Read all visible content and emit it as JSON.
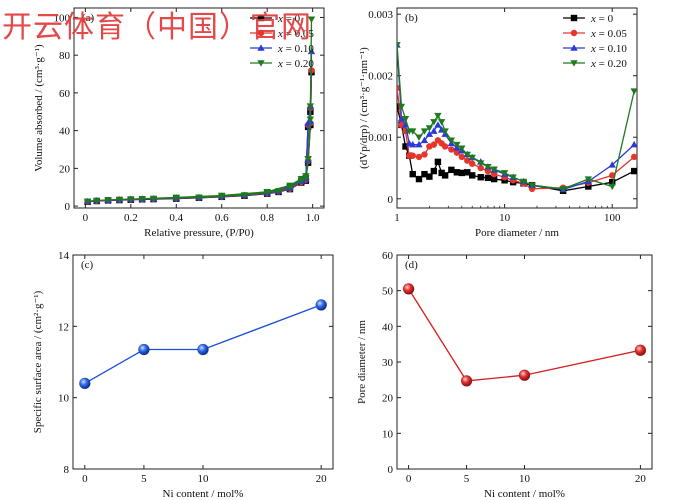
{
  "watermark": "开云体育（中国）官网",
  "chart_data": [
    {
      "id": "a",
      "type": "line",
      "panel_label": "(a)",
      "xlabel": "Relative pressure, (P/P0)",
      "ylabel": "Volume absorbed / (cm³·g⁻¹)",
      "xlim": [
        -0.05,
        1.05
      ],
      "ylim": [
        -1,
        105
      ],
      "xticks": [
        0,
        0.2,
        0.4,
        0.6,
        0.8,
        1.0
      ],
      "xtick_labels": [
        "0",
        "0.2",
        "0.4",
        "0.6",
        "0.8",
        "1.0"
      ],
      "yticks": [
        0,
        20,
        40,
        60,
        80,
        100
      ],
      "ytick_labels": [
        "0",
        "20",
        "40",
        "60",
        "80",
        "100"
      ],
      "legend_position": "top-right",
      "series": [
        {
          "name": "x = 0",
          "legend_x": "x",
          "legend_rest": " = 0",
          "color": "#000000",
          "marker": "square",
          "x": [
            0.01,
            0.05,
            0.1,
            0.15,
            0.2,
            0.25,
            0.3,
            0.4,
            0.5,
            0.6,
            0.7,
            0.8,
            0.85,
            0.9,
            0.95,
            0.97,
            0.98,
            0.99,
            0.995,
            0.99,
            0.98,
            0.97,
            0.95,
            0.9,
            0.8,
            0.6,
            0.4,
            0.2
          ],
          "y": [
            2.3,
            2.7,
            3.0,
            3.2,
            3.4,
            3.6,
            3.7,
            4.0,
            4.4,
            4.9,
            5.5,
            6.6,
            7.5,
            9,
            12.5,
            13.5,
            42,
            50,
            71,
            43,
            23,
            14.5,
            13,
            10,
            7,
            5,
            4,
            3.4
          ]
        },
        {
          "name": "x = 0.05",
          "legend_x": "x",
          "legend_rest": " = 0.05",
          "color": "#e8352c",
          "marker": "circle",
          "x": [
            0.01,
            0.05,
            0.1,
            0.15,
            0.2,
            0.25,
            0.3,
            0.4,
            0.5,
            0.6,
            0.7,
            0.8,
            0.85,
            0.9,
            0.95,
            0.97,
            0.98,
            0.99,
            0.995,
            0.99,
            0.98,
            0.97,
            0.95,
            0.9,
            0.8,
            0.6,
            0.4,
            0.2
          ],
          "y": [
            2.4,
            2.8,
            3.1,
            3.3,
            3.5,
            3.7,
            3.8,
            4.1,
            4.5,
            5.0,
            5.7,
            6.8,
            7.7,
            9.2,
            12.8,
            14,
            43,
            52,
            72,
            44,
            24,
            15,
            13.5,
            10.3,
            7.2,
            5.2,
            4.2,
            3.5
          ]
        },
        {
          "name": "x = 0.10",
          "legend_x": "x",
          "legend_rest": " = 0.10",
          "color": "#2b39d9",
          "marker": "triangle-up",
          "x": [
            0.01,
            0.05,
            0.1,
            0.15,
            0.2,
            0.25,
            0.3,
            0.4,
            0.5,
            0.6,
            0.7,
            0.8,
            0.85,
            0.9,
            0.95,
            0.97,
            0.98,
            0.99,
            0.995,
            0.99,
            0.98,
            0.97,
            0.95,
            0.9,
            0.8,
            0.6,
            0.4,
            0.2
          ],
          "y": [
            2.5,
            2.9,
            3.2,
            3.4,
            3.6,
            3.8,
            3.9,
            4.2,
            4.6,
            5.1,
            5.8,
            7.0,
            7.9,
            9.5,
            13.2,
            14.5,
            44,
            53,
            82,
            45,
            24.5,
            15.5,
            14,
            10.6,
            7.4,
            5.4,
            4.4,
            3.6
          ]
        },
        {
          "name": "x = 0.20",
          "legend_x": "x",
          "legend_rest": " = 0.20",
          "color": "#1f7a1f",
          "marker": "triangle-down",
          "x": [
            0.01,
            0.05,
            0.1,
            0.15,
            0.2,
            0.25,
            0.3,
            0.4,
            0.5,
            0.6,
            0.7,
            0.8,
            0.85,
            0.9,
            0.95,
            0.97,
            0.98,
            0.99,
            0.995,
            0.99,
            0.98,
            0.97,
            0.95,
            0.9,
            0.8,
            0.6,
            0.4,
            0.2
          ],
          "y": [
            2.6,
            3.0,
            3.3,
            3.5,
            3.7,
            3.9,
            4.0,
            4.3,
            4.7,
            5.2,
            5.9,
            7.2,
            8.1,
            9.8,
            13.6,
            15,
            25,
            53,
            99,
            46,
            25,
            16,
            14.5,
            11,
            7.6,
            5.6,
            4.6,
            3.7
          ]
        }
      ]
    },
    {
      "id": "b",
      "type": "line",
      "panel_label": "(b)",
      "xlabel": "Pore diameter / nm",
      "ylabel": "(dVp/drp) / (cm³·g⁻¹·nm⁻¹)",
      "xscale": "log",
      "xlim": [
        1,
        170
      ],
      "ylim": [
        -0.00015,
        0.0031
      ],
      "xticks": [
        1,
        10,
        100
      ],
      "xtick_labels": [
        "1",
        "10",
        "100"
      ],
      "yticks": [
        0,
        0.001,
        0.002,
        0.003
      ],
      "ytick_labels": [
        "0",
        "0.001",
        "0.002",
        "0.003"
      ],
      "legend_position": "top-right",
      "series": [
        {
          "name": "x = 0",
          "legend_x": "x",
          "legend_rest": " = 0",
          "color": "#000000",
          "marker": "square",
          "x": [
            1.0,
            1.1,
            1.2,
            1.3,
            1.4,
            1.6,
            1.8,
            2.0,
            2.2,
            2.4,
            2.6,
            2.8,
            3.2,
            3.6,
            4,
            4.5,
            5,
            6,
            7,
            8,
            10,
            12,
            15,
            18,
            35,
            60,
            100,
            160
          ],
          "y": [
            0.0015,
            0.0012,
            0.00085,
            0.0007,
            0.0004,
            0.00032,
            0.0004,
            0.00036,
            0.00045,
            0.0006,
            0.00042,
            0.00038,
            0.00047,
            0.00043,
            0.00042,
            0.00043,
            0.00038,
            0.00035,
            0.00034,
            0.00032,
            0.0003,
            0.00027,
            0.00025,
            0.00022,
            0.00013,
            0.0002,
            0.00027,
            0.00045
          ]
        },
        {
          "name": "x = 0.05",
          "legend_x": "x",
          "legend_rest": " = 0.05",
          "color": "#e8352c",
          "marker": "circle",
          "x": [
            1.0,
            1.1,
            1.2,
            1.3,
            1.4,
            1.6,
            1.8,
            2.0,
            2.2,
            2.4,
            2.6,
            2.8,
            3.2,
            3.6,
            4,
            4.5,
            5,
            6,
            7,
            8,
            10,
            12,
            15,
            18,
            35,
            60,
            100,
            160
          ],
          "y": [
            0.0018,
            0.0012,
            0.0011,
            0.0007,
            0.0007,
            0.00068,
            0.00072,
            0.00085,
            0.00088,
            0.00095,
            0.0009,
            0.00085,
            0.0008,
            0.00075,
            0.00068,
            0.00062,
            0.00057,
            0.0005,
            0.00045,
            0.0004,
            0.00035,
            0.0003,
            0.00025,
            0.00016,
            0.00018,
            0.00026,
            0.00038,
            0.00068
          ]
        },
        {
          "name": "x = 0.10",
          "legend_x": "x",
          "legend_rest": " = 0.10",
          "color": "#2b39d9",
          "marker": "triangle-up",
          "x": [
            1.0,
            1.1,
            1.2,
            1.3,
            1.4,
            1.6,
            1.8,
            2.0,
            2.2,
            2.4,
            2.6,
            2.8,
            3.2,
            3.6,
            4,
            4.5,
            5,
            6,
            7,
            8,
            10,
            12,
            15,
            18,
            35,
            60,
            100,
            160
          ],
          "y": [
            0.0025,
            0.0013,
            0.0012,
            0.0009,
            0.00088,
            0.00088,
            0.00095,
            0.00105,
            0.0011,
            0.0012,
            0.00112,
            0.00105,
            0.0009,
            0.00083,
            0.00078,
            0.00072,
            0.00067,
            0.0006,
            0.00052,
            0.00047,
            0.0004,
            0.00035,
            0.00028,
            0.00022,
            0.00015,
            0.00028,
            0.00055,
            0.00088
          ]
        },
        {
          "name": "x = 0.20",
          "legend_x": "x",
          "legend_rest": " = 0.20",
          "color": "#1f7a1f",
          "marker": "triangle-down",
          "x": [
            1.0,
            1.1,
            1.2,
            1.3,
            1.4,
            1.6,
            1.8,
            2.0,
            2.2,
            2.4,
            2.6,
            2.8,
            3.2,
            3.6,
            4,
            4.5,
            5,
            6,
            7,
            8,
            10,
            12,
            15,
            18,
            35,
            60,
            100,
            160
          ],
          "y": [
            0.0025,
            0.0015,
            0.0013,
            0.0011,
            0.0011,
            0.001,
            0.0011,
            0.00115,
            0.00125,
            0.00135,
            0.00125,
            0.0011,
            0.00095,
            0.00088,
            0.00082,
            0.00072,
            0.00067,
            0.00058,
            0.00052,
            0.00048,
            0.00042,
            0.00035,
            0.00028,
            0.00022,
            0.00016,
            0.00032,
            0.0002,
            0.00175
          ]
        }
      ]
    },
    {
      "id": "c",
      "type": "line",
      "panel_label": "(c)",
      "xlabel": "Ni content / mol%",
      "ylabel": "Specific surface area / (cm²·g⁻¹)",
      "xlim": [
        -1,
        21
      ],
      "ylim": [
        8,
        14
      ],
      "xticks": [
        0,
        5,
        10,
        20
      ],
      "xtick_labels": [
        "0",
        "5",
        "10",
        "20"
      ],
      "yticks": [
        8,
        10,
        12,
        14
      ],
      "ytick_labels": [
        "8",
        "10",
        "12",
        "14"
      ],
      "series": [
        {
          "name": "Specific surface area",
          "color": "#1a4fd6",
          "marker": "sphere",
          "x": [
            0,
            5,
            10,
            20
          ],
          "y": [
            10.4,
            11.35,
            11.35,
            12.6
          ]
        }
      ]
    },
    {
      "id": "d",
      "type": "line",
      "panel_label": "(d)",
      "xlabel": "Ni content / mol%",
      "ylabel": "Pore diameter / nm",
      "xlim": [
        -1,
        21
      ],
      "ylim": [
        0,
        60
      ],
      "xticks": [
        0,
        5,
        10,
        20
      ],
      "xtick_labels": [
        "0",
        "5",
        "10",
        "20"
      ],
      "yticks": [
        0,
        10,
        20,
        30,
        40,
        50,
        60
      ],
      "ytick_labels": [
        "0",
        "10",
        "20",
        "30",
        "40",
        "50",
        "60"
      ],
      "series": [
        {
          "name": "Pore diameter",
          "color": "#d41f1f",
          "marker": "sphere",
          "x": [
            0,
            5,
            10,
            20
          ],
          "y": [
            50.5,
            24.7,
            26.3,
            33.3
          ]
        }
      ]
    }
  ]
}
